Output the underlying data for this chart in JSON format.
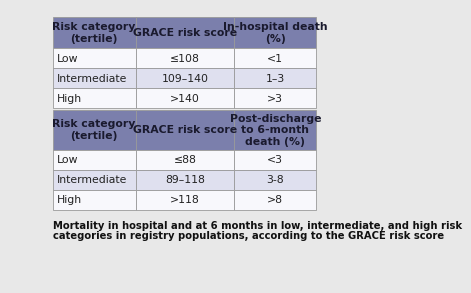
{
  "caption_line1": "Mortality in hospital and at 6 months in low, intermediate, and high risk",
  "caption_line2": "categories in registry populations, according to the GRACE risk score",
  "header_bg": "#7b7fac",
  "row_bg_alt": "#dfe0ef",
  "row_bg_white": "#f8f8fc",
  "border_color": "#999999",
  "bg_color": "#e8e8e8",
  "table1": {
    "headers": [
      "Risk category\n(tertile)",
      "GRACE risk score",
      "In-hospital death\n(%)"
    ],
    "rows": [
      [
        "Low",
        "≤108",
        "<1"
      ],
      [
        "Intermediate",
        "109–140",
        "1–3"
      ],
      [
        "High",
        ">140",
        ">3"
      ]
    ]
  },
  "table2": {
    "headers": [
      "Risk category\n(tertile)",
      "GRACE risk score",
      "Post-discharge\nto 6-month\ndeath (%)"
    ],
    "rows": [
      [
        "Low",
        "≤88",
        "<3"
      ],
      [
        "Intermediate",
        "89–118",
        "3-8"
      ],
      [
        "High",
        ">118",
        ">8"
      ]
    ]
  }
}
